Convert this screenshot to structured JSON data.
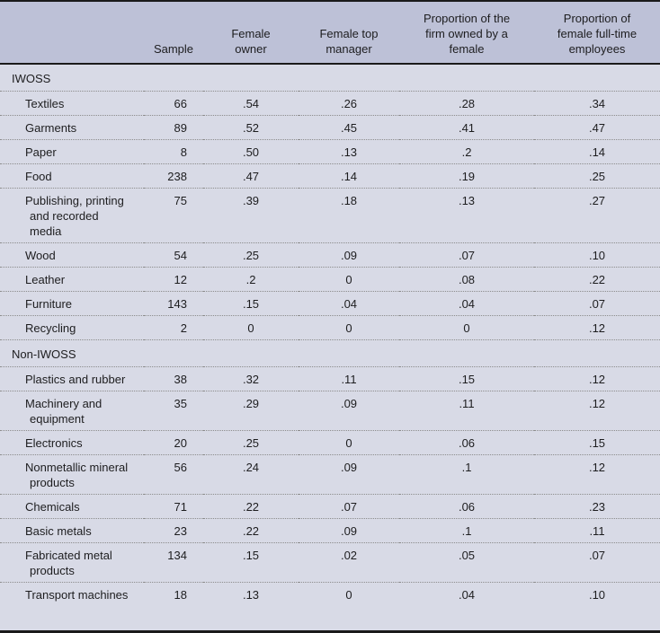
{
  "colors": {
    "header_bg": "#bdc1d7",
    "row_bg": "#d8dae6",
    "rule_dark": "#1a1a1a",
    "rule_dotted": "#8c8c8c",
    "text": "#1d1d1f"
  },
  "table": {
    "columns": [
      {
        "label": ""
      },
      {
        "label": "Sample"
      },
      {
        "label": "Female owner"
      },
      {
        "label": "Female top manager"
      },
      {
        "label": "Proportion of the firm owned by a female"
      },
      {
        "label": "Proportion of female full-time employees"
      }
    ],
    "sections": [
      {
        "label": "IWOSS",
        "rows": [
          {
            "label": "Textiles",
            "values": [
              "66",
              ".54",
              ".26",
              ".28",
              ".34"
            ]
          },
          {
            "label": "Garments",
            "values": [
              "89",
              ".52",
              ".45",
              ".41",
              ".47"
            ]
          },
          {
            "label": "Paper",
            "values": [
              "8",
              ".50",
              ".13",
              ".2",
              ".14"
            ]
          },
          {
            "label": "Food",
            "values": [
              "238",
              ".47",
              ".14",
              ".19",
              ".25"
            ]
          },
          {
            "label": "Publishing, printing and recorded media",
            "values": [
              "75",
              ".39",
              ".18",
              ".13",
              ".27"
            ]
          },
          {
            "label": "Wood",
            "values": [
              "54",
              ".25",
              ".09",
              ".07",
              ".10"
            ]
          },
          {
            "label": "Leather",
            "values": [
              "12",
              ".2",
              "0",
              ".08",
              ".22"
            ]
          },
          {
            "label": "Furniture",
            "values": [
              "143",
              ".15",
              ".04",
              ".04",
              ".07"
            ]
          },
          {
            "label": "Recycling",
            "values": [
              "2",
              "0",
              "0",
              "0",
              ".12"
            ]
          }
        ]
      },
      {
        "label": "Non-IWOSS",
        "rows": [
          {
            "label": "Plastics and rubber",
            "values": [
              "38",
              ".32",
              ".11",
              ".15",
              ".12"
            ]
          },
          {
            "label": "Machinery and equipment",
            "values": [
              "35",
              ".29",
              ".09",
              ".11",
              ".12"
            ]
          },
          {
            "label": "Electronics",
            "values": [
              "20",
              ".25",
              "0",
              ".06",
              ".15"
            ]
          },
          {
            "label": "Nonmetallic mineral products",
            "values": [
              "56",
              ".24",
              ".09",
              ".1",
              ".12"
            ]
          },
          {
            "label": "Chemicals",
            "values": [
              "71",
              ".22",
              ".07",
              ".06",
              ".23"
            ]
          },
          {
            "label": "Basic metals",
            "values": [
              "23",
              ".22",
              ".09",
              ".1",
              ".11"
            ]
          },
          {
            "label": "Fabricated metal products",
            "values": [
              "134",
              ".15",
              ".02",
              ".05",
              ".07"
            ]
          },
          {
            "label": "Transport machines",
            "values": [
              "18",
              ".13",
              "0",
              ".04",
              ".10"
            ]
          }
        ]
      }
    ]
  }
}
